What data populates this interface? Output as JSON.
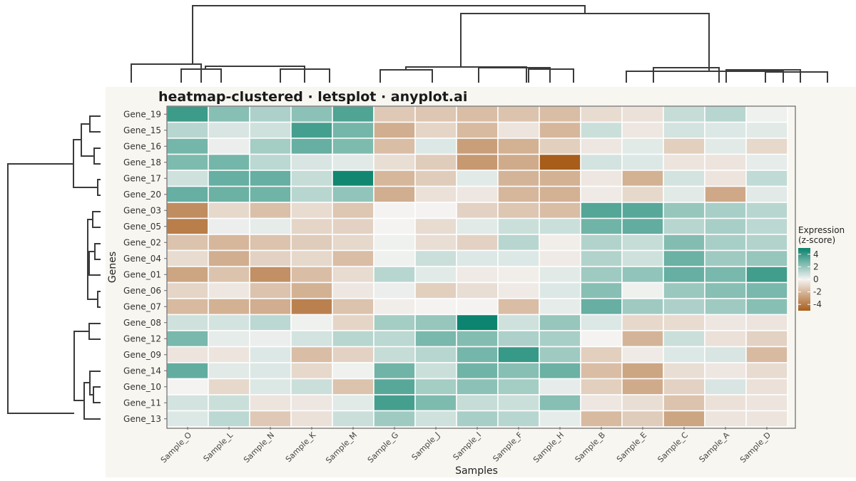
{
  "chart_data": {
    "type": "heatmap",
    "title": "heatmap-clustered · letsplot · anyplot.ai",
    "xlabel": "Samples",
    "ylabel": "Genes",
    "legend": {
      "title_line1": "Expression",
      "title_line2": "(z-score)",
      "ticks": [
        4,
        2,
        0,
        -2,
        -4
      ],
      "tick_labels": [
        "4",
        "2",
        "0",
        "-2",
        "-4"
      ],
      "range": [
        -5,
        5
      ],
      "position": "right"
    },
    "colors": {
      "low": "#a85d1b",
      "mid": "#f4f3f2",
      "high": "#08826c"
    },
    "columns": [
      "Sample_O",
      "Sample_L",
      "Sample_N",
      "Sample_K",
      "Sample_M",
      "Sample_G",
      "Sample_J",
      "Sample_I",
      "Sample_F",
      "Sample_H",
      "Sample_B",
      "Sample_E",
      "Sample_C",
      "Sample_A",
      "Sample_D"
    ],
    "rows": [
      "Gene_19",
      "Gene_15",
      "Gene_16",
      "Gene_18",
      "Gene_17",
      "Gene_20",
      "Gene_03",
      "Gene_05",
      "Gene_02",
      "Gene_04",
      "Gene_01",
      "Gene_06",
      "Gene_07",
      "Gene_08",
      "Gene_12",
      "Gene_09",
      "Gene_14",
      "Gene_10",
      "Gene_11",
      "Gene_13"
    ],
    "values": [
      [
        3.9,
        2.3,
        1.5,
        2.2,
        3.5,
        -1.4,
        -1.5,
        -1.8,
        -1.6,
        -1.8,
        -0.8,
        -0.6,
        1.0,
        1.3,
        0.1
      ],
      [
        1.3,
        0.6,
        0.8,
        3.7,
        2.7,
        -2.3,
        -1.0,
        -1.9,
        -0.5,
        -2.0,
        0.9,
        -0.4,
        0.7,
        0.5,
        0.4
      ],
      [
        2.7,
        0.2,
        1.7,
        3.0,
        2.5,
        -1.8,
        0.5,
        -2.8,
        -2.2,
        -1.2,
        -0.4,
        0.4,
        -1.2,
        0.4,
        -0.9
      ],
      [
        2.5,
        2.7,
        1.2,
        0.6,
        0.4,
        -0.7,
        -1.3,
        -3.0,
        -2.4,
        -5.0,
        0.7,
        0.5,
        -0.5,
        -0.5,
        0.3
      ],
      [
        0.8,
        3.0,
        3.0,
        1.0,
        4.8,
        -2.0,
        -1.3,
        0.4,
        -2.1,
        -2.2,
        -0.4,
        -2.2,
        0.7,
        -0.5,
        1.1
      ],
      [
        3.0,
        2.9,
        2.8,
        1.3,
        2.1,
        -2.3,
        -0.6,
        -0.4,
        -2.0,
        -2.2,
        -0.3,
        -0.9,
        0.4,
        -2.5,
        0.4
      ],
      [
        -3.4,
        -0.9,
        -1.7,
        -0.8,
        -1.5,
        0.0,
        0.0,
        -1.1,
        -1.5,
        -1.8,
        3.4,
        3.3,
        2.0,
        1.6,
        1.3
      ],
      [
        -3.9,
        0.2,
        0.3,
        -1.0,
        -1.1,
        0.0,
        -0.8,
        0.4,
        0.9,
        0.9,
        2.8,
        3.1,
        1.3,
        1.6,
        1.2
      ],
      [
        -1.6,
        -2.0,
        -1.6,
        -1.3,
        -0.9,
        0.1,
        -0.7,
        -1.1,
        1.3,
        -0.2,
        1.4,
        1.0,
        2.4,
        1.6,
        1.4
      ],
      [
        -0.8,
        -2.3,
        -1.1,
        -0.9,
        -1.8,
        0.1,
        0.9,
        0.5,
        0.5,
        -0.3,
        1.4,
        0.8,
        2.9,
        1.8,
        2.0
      ],
      [
        -2.6,
        -1.6,
        -3.3,
        -1.8,
        -0.8,
        1.3,
        0.4,
        -0.3,
        -0.2,
        0.4,
        1.8,
        2.1,
        3.0,
        2.6,
        3.8
      ],
      [
        -1.0,
        -0.4,
        -1.6,
        -2.2,
        -0.4,
        0.2,
        -1.2,
        -0.7,
        -0.3,
        0.5,
        2.3,
        0.1,
        1.9,
        2.3,
        2.6
      ],
      [
        -1.9,
        -2.2,
        -2.3,
        -3.8,
        -1.6,
        -0.2,
        0.0,
        0.0,
        -1.8,
        0.3,
        3.0,
        1.8,
        1.5,
        1.8,
        2.3
      ],
      [
        0.8,
        0.7,
        1.2,
        0.1,
        -1.0,
        1.7,
        2.0,
        4.9,
        0.8,
        2.0,
        0.5,
        -0.9,
        -0.8,
        -0.4,
        -0.5
      ],
      [
        2.6,
        0.3,
        0.2,
        0.7,
        1.3,
        1.2,
        2.6,
        2.4,
        1.5,
        1.6,
        0.0,
        -2.1,
        0.9,
        -0.6,
        -1.1
      ],
      [
        -0.5,
        -0.5,
        0.5,
        -1.8,
        -1.1,
        1.0,
        1.3,
        2.7,
        4.0,
        1.8,
        -1.2,
        -0.3,
        0.5,
        0.6,
        -1.9
      ],
      [
        3.1,
        0.4,
        0.5,
        -0.9,
        0.1,
        2.8,
        0.9,
        2.8,
        2.3,
        2.9,
        -1.8,
        -2.6,
        -0.7,
        -0.4,
        -0.8
      ],
      [
        0.0,
        -0.9,
        0.5,
        0.9,
        -1.6,
        3.3,
        1.7,
        2.2,
        1.7,
        0.3,
        -1.2,
        -2.4,
        -1.1,
        0.6,
        -0.6
      ],
      [
        0.7,
        0.9,
        -0.5,
        -0.4,
        0.4,
        3.7,
        2.5,
        1.0,
        0.9,
        2.3,
        -0.4,
        -0.7,
        -1.6,
        -0.6,
        -0.5
      ],
      [
        0.5,
        1.2,
        -1.4,
        -0.6,
        0.9,
        1.8,
        0.8,
        1.6,
        1.3,
        0.3,
        -1.9,
        -1.3,
        -2.6,
        -0.5,
        -0.5
      ]
    ]
  }
}
